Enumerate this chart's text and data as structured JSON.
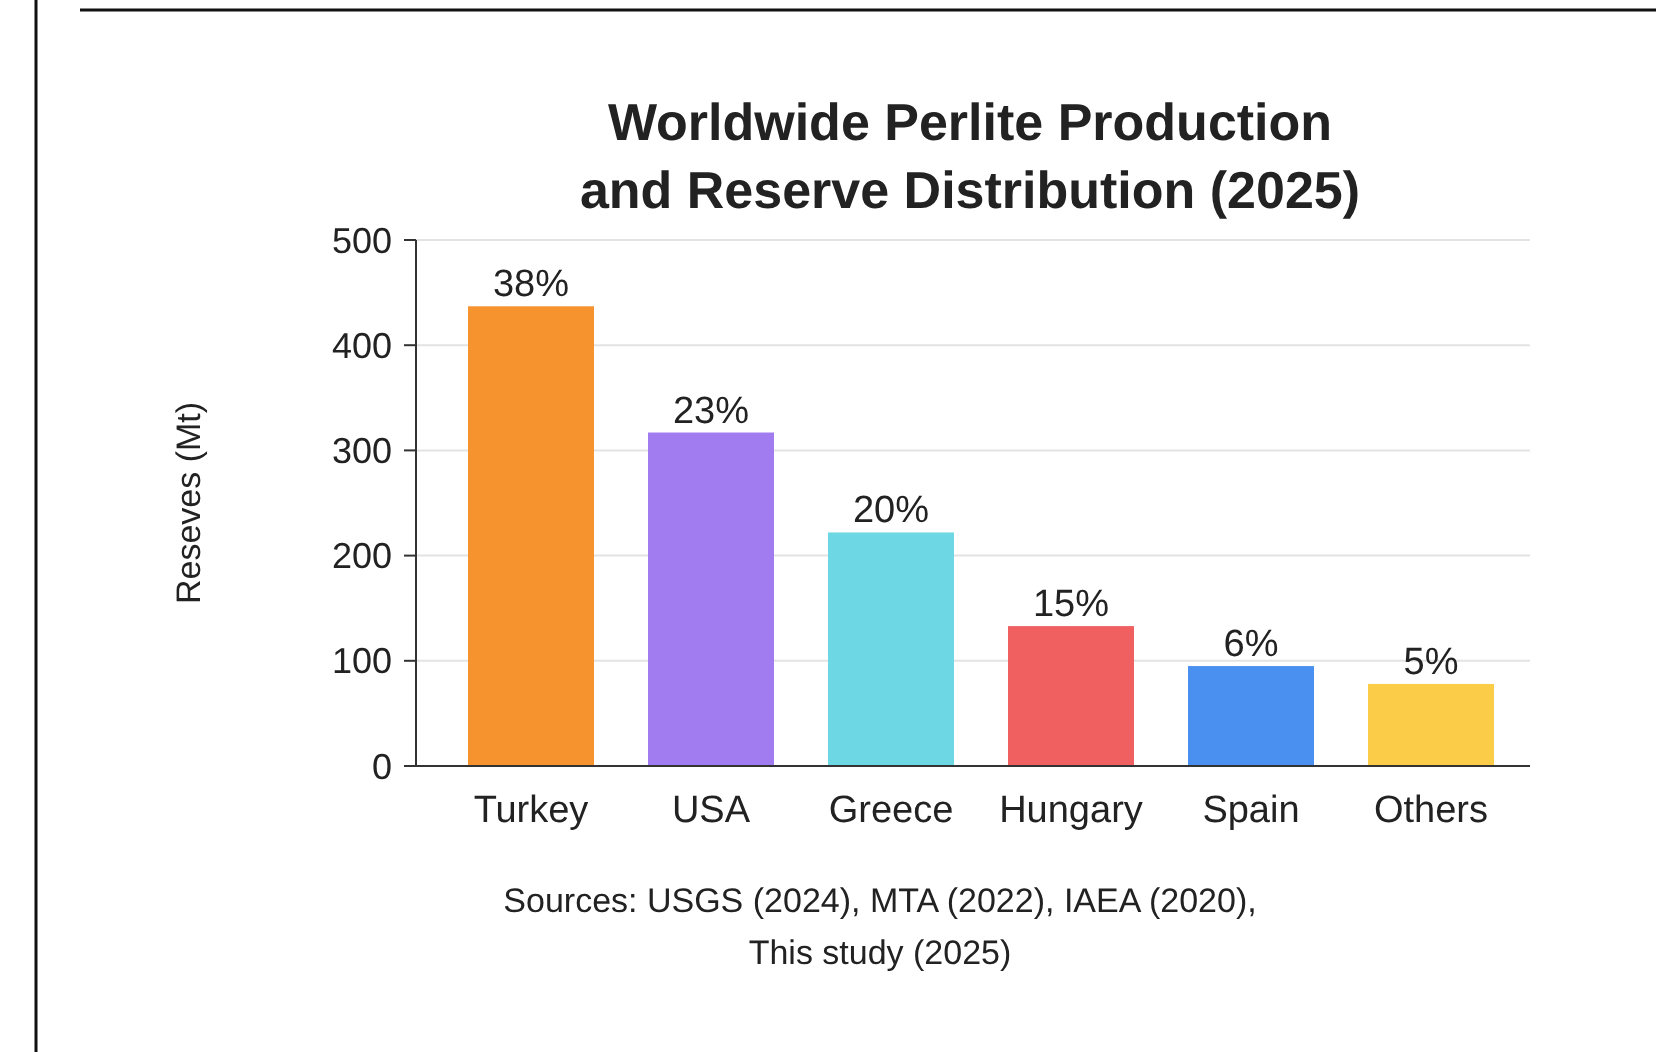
{
  "chart_data": {
    "type": "bar",
    "title": "Worldwide Perlite Production\nand Reserve Distribution (2025)",
    "ylabel": "Reseves (Mt)",
    "categories": [
      "Turkey",
      "USA",
      "Greece",
      "Hungary",
      "Spain",
      "Others"
    ],
    "values": [
      437,
      317,
      222,
      133,
      95,
      78
    ],
    "colors": [
      "#f7932f",
      "#a07cf0",
      "#6dd8e3",
      "#f06060",
      "#4a90f0",
      "#fbcc47"
    ],
    "ylim": [
      0,
      500
    ],
    "yticks": [
      0,
      100,
      200,
      300,
      400,
      500
    ],
    "grid": "y",
    "annotations": [
      {
        "text": "38%",
        "x": "Turkey",
        "y": 437
      },
      {
        "text": "23%",
        "x": "USA",
        "y": 317
      },
      {
        "text": "20%",
        "x": "Greece",
        "y": 222
      },
      {
        "text": "15%",
        "x": "Hungary",
        "y": 133
      },
      {
        "text": "6%",
        "x": "Spain",
        "y": 95
      },
      {
        "text": "5%",
        "x": "Others",
        "y": 78
      },
      "Sources: USGS (2024), MTA (2022), IAEA (2020), This study (2025)"
    ]
  }
}
